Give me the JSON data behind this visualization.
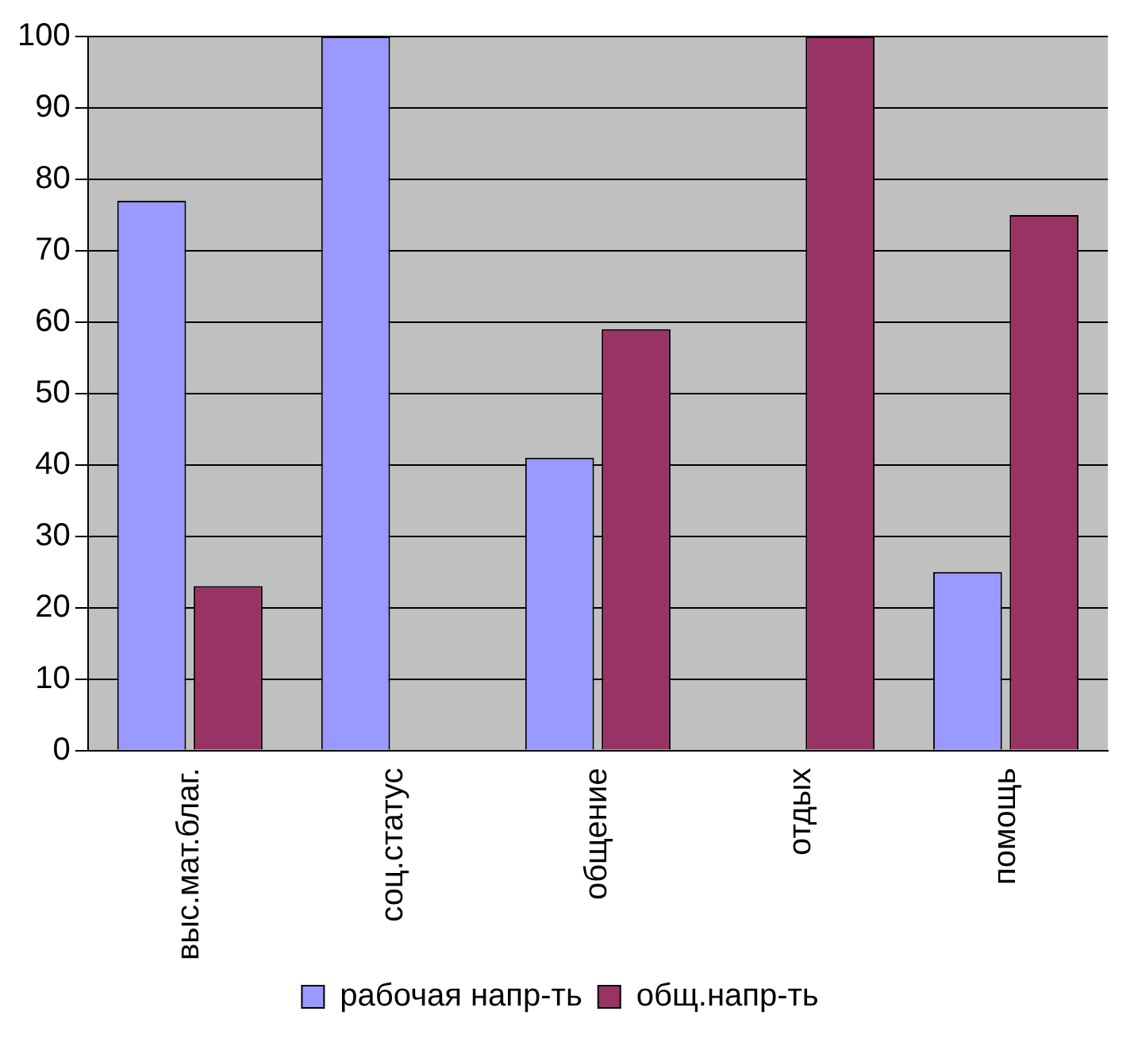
{
  "chart_data": {
    "type": "bar",
    "categories": [
      "выс.мат.благ.",
      "соц.статус",
      "общение",
      "отдых",
      "помощь"
    ],
    "series": [
      {
        "name": "рабочая напр-ть",
        "color": "#9999ff",
        "values": [
          77,
          100,
          41,
          0,
          25
        ]
      },
      {
        "name": "общ.напр-ть",
        "color": "#993366",
        "values": [
          23,
          0,
          59,
          100,
          75
        ]
      }
    ],
    "ylim": [
      0,
      100
    ],
    "yticks": [
      0,
      10,
      20,
      30,
      40,
      50,
      60,
      70,
      80,
      90,
      100
    ],
    "grid": "y",
    "legend": "bottom"
  }
}
